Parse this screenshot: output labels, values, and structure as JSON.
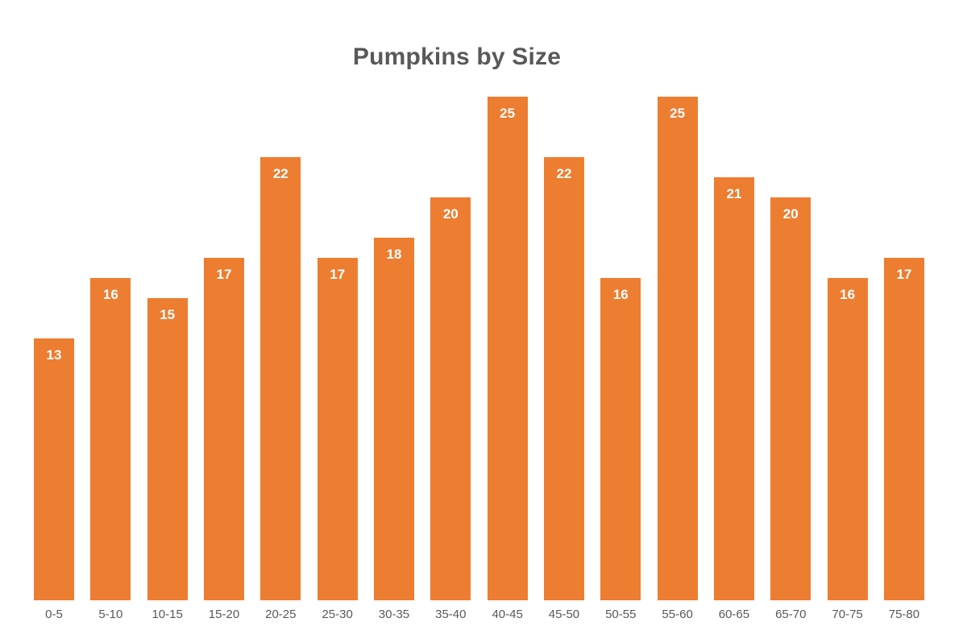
{
  "chart_data": {
    "type": "bar",
    "title": "Pumpkins by Size",
    "categories": [
      "0-5",
      "5-10",
      "10-15",
      "15-20",
      "20-25",
      "25-30",
      "30-35",
      "35-40",
      "40-45",
      "45-50",
      "50-55",
      "55-60",
      "60-65",
      "65-70",
      "70-75",
      "75-80"
    ],
    "values": [
      13,
      16,
      15,
      17,
      22,
      17,
      18,
      20,
      25,
      22,
      16,
      25,
      21,
      20,
      16,
      17
    ],
    "xlabel": "",
    "ylabel": "",
    "ylim": [
      0,
      25
    ],
    "grid": false,
    "legend": false,
    "value_labels_position": "inside-top",
    "bar_color": "#ED7D31",
    "value_label_color": "#FFFFFF",
    "title_color": "#595959",
    "axis_tick_color": "#595959",
    "background_color": "#FFFFFF"
  }
}
